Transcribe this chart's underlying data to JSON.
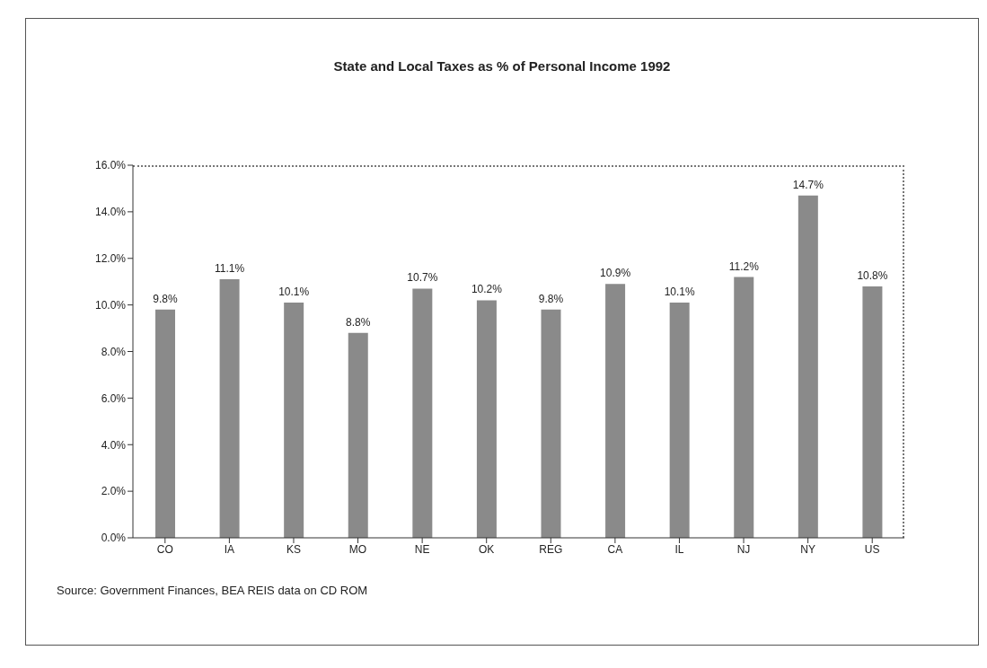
{
  "chart_data": {
    "type": "bar",
    "title": "State and Local Taxes as % of Personal Income 1992",
    "categories": [
      "CO",
      "IA",
      "KS",
      "MO",
      "NE",
      "OK",
      "REG",
      "CA",
      "IL",
      "NJ",
      "NY",
      "US"
    ],
    "values": [
      9.8,
      11.1,
      10.1,
      8.8,
      10.7,
      10.2,
      9.8,
      10.9,
      10.1,
      11.2,
      14.7,
      10.8
    ],
    "value_labels": [
      "9.8%",
      "11.1%",
      "10.1%",
      "8.8%",
      "10.7%",
      "10.2%",
      "9.8%",
      "10.9%",
      "10.1%",
      "11.2%",
      "14.7%",
      "10.8%"
    ],
    "color": "#8a8a8a",
    "ylim": [
      0,
      16
    ],
    "yticks": [
      {
        "value": 0,
        "label": "0.0%"
      },
      {
        "value": 2,
        "label": "2.0%"
      },
      {
        "value": 4,
        "label": "4.0%"
      },
      {
        "value": 6,
        "label": "6.0%"
      },
      {
        "value": 8,
        "label": "8.0%"
      },
      {
        "value": 10,
        "label": "10.0%"
      },
      {
        "value": 12,
        "label": "12.0%"
      },
      {
        "value": 14,
        "label": "14.0%"
      },
      {
        "value": 16,
        "label": "16.0%"
      }
    ],
    "annotations": [
      "Source: Government Finances, BEA REIS data on CD ROM"
    ]
  }
}
